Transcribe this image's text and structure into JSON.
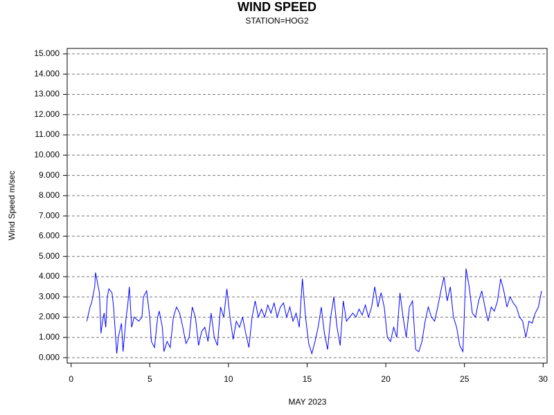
{
  "chart_data": {
    "type": "line",
    "title": "WIND SPEED",
    "subtitle": "STATION=HOG2",
    "x_label": "MAY 2023",
    "y_label": "Wind Speed m/sec",
    "color": "#0000ff",
    "grid": true,
    "xlim": [
      -0.25,
      30.25
    ],
    "ylim": [
      -0.27,
      15.27
    ],
    "xticks": [
      0,
      5,
      10,
      15,
      20,
      25,
      30
    ],
    "yticks": [
      {
        "value": 0,
        "label": "0.000"
      },
      {
        "value": 1,
        "label": "1.000"
      },
      {
        "value": 2,
        "label": "2.000"
      },
      {
        "value": 3,
        "label": "3.000"
      },
      {
        "value": 4,
        "label": "4.000"
      },
      {
        "value": 5,
        "label": "5.000"
      },
      {
        "value": 6,
        "label": "6.000"
      },
      {
        "value": 7,
        "label": "7.000"
      },
      {
        "value": 8,
        "label": "8.000"
      },
      {
        "value": 9,
        "label": "9.000"
      },
      {
        "value": 10,
        "label": "10.000"
      },
      {
        "value": 11,
        "label": "11.000"
      },
      {
        "value": 12,
        "label": "12.000"
      },
      {
        "value": 13,
        "label": "13.000"
      },
      {
        "value": 14,
        "label": "14.000"
      },
      {
        "value": 15,
        "label": "15.000"
      }
    ],
    "x": [
      1.0,
      1.2,
      1.3,
      1.5,
      1.55,
      1.7,
      1.8,
      1.9,
      2.0,
      2.1,
      2.2,
      2.3,
      2.4,
      2.6,
      2.7,
      2.9,
      3.0,
      3.2,
      3.3,
      3.5,
      3.6,
      3.7,
      3.85,
      4.0,
      4.3,
      4.5,
      4.6,
      4.8,
      5.0,
      5.1,
      5.3,
      5.5,
      5.6,
      5.8,
      5.9,
      6.1,
      6.3,
      6.5,
      6.7,
      6.9,
      7.1,
      7.3,
      7.5,
      7.7,
      7.9,
      8.1,
      8.3,
      8.5,
      8.7,
      8.9,
      9.1,
      9.3,
      9.5,
      9.7,
      9.9,
      10.1,
      10.3,
      10.5,
      10.7,
      10.9,
      11.1,
      11.3,
      11.5,
      11.7,
      11.9,
      12.1,
      12.3,
      12.5,
      12.7,
      12.9,
      13.1,
      13.3,
      13.5,
      13.7,
      13.9,
      14.1,
      14.3,
      14.5,
      14.7,
      14.9,
      15.1,
      15.3,
      15.5,
      15.7,
      15.9,
      16.1,
      16.3,
      16.5,
      16.7,
      16.9,
      17.1,
      17.3,
      17.5,
      17.7,
      17.9,
      18.1,
      18.3,
      18.5,
      18.7,
      18.9,
      19.1,
      19.3,
      19.5,
      19.7,
      19.9,
      20.1,
      20.3,
      20.5,
      20.7,
      20.9,
      21.1,
      21.3,
      21.5,
      21.7,
      21.9,
      22.1,
      22.3,
      22.5,
      22.7,
      22.9,
      23.1,
      23.3,
      23.5,
      23.7,
      23.9,
      24.1,
      24.3,
      24.5,
      24.7,
      24.9,
      25.1,
      25.3,
      25.5,
      25.7,
      25.9,
      26.1,
      26.3,
      26.5,
      26.7,
      26.9,
      27.1,
      27.3,
      27.5,
      27.7,
      27.9,
      28.1,
      28.3,
      28.5,
      28.7,
      28.9,
      29.1,
      29.3,
      29.5,
      29.7,
      29.9
    ],
    "values": [
      1.8,
      2.5,
      2.7,
      3.5,
      4.2,
      3.6,
      3.2,
      1.2,
      1.8,
      2.2,
      1.5,
      3.0,
      3.4,
      3.2,
      2.5,
      0.2,
      1.0,
      1.7,
      0.3,
      2.0,
      2.6,
      3.5,
      1.5,
      2.0,
      1.8,
      2.0,
      3.0,
      3.3,
      2.0,
      0.8,
      0.5,
      2.0,
      2.3,
      1.5,
      0.3,
      0.8,
      0.5,
      2.0,
      2.5,
      2.2,
      1.5,
      0.7,
      1.0,
      2.5,
      2.0,
      0.6,
      1.3,
      1.5,
      0.8,
      2.2,
      1.0,
      0.6,
      2.5,
      2.0,
      3.4,
      2.0,
      0.9,
      1.8,
      1.5,
      2.0,
      1.2,
      0.5,
      2.0,
      2.8,
      2.0,
      2.4,
      2.0,
      2.6,
      2.2,
      2.7,
      2.0,
      2.5,
      2.7,
      2.0,
      2.5,
      1.8,
      2.2,
      1.5,
      3.9,
      2.0,
      0.7,
      0.2,
      0.8,
      1.5,
      2.5,
      1.2,
      0.4,
      2.0,
      3.0,
      1.5,
      0.6,
      2.8,
      1.8,
      2.0,
      2.2,
      2.0,
      2.4,
      2.1,
      2.6,
      2.0,
      2.5,
      3.5,
      2.5,
      3.2,
      2.5,
      1.0,
      0.8,
      1.5,
      1.0,
      3.2,
      2.0,
      1.0,
      2.5,
      2.8,
      0.4,
      0.3,
      0.8,
      1.8,
      2.5,
      2.0,
      1.8,
      2.5,
      3.3,
      4.0,
      2.8,
      3.5,
      2.0,
      1.5,
      0.6,
      0.3,
      4.4,
      3.5,
      2.2,
      2.0,
      2.8,
      3.3,
      2.5,
      1.8,
      2.5,
      2.3,
      2.8,
      3.9,
      3.3,
      2.5,
      3.0,
      2.7,
      2.5,
      2.0,
      1.8,
      1.0,
      1.8,
      1.7,
      2.2,
      2.5,
      3.3
    ]
  }
}
